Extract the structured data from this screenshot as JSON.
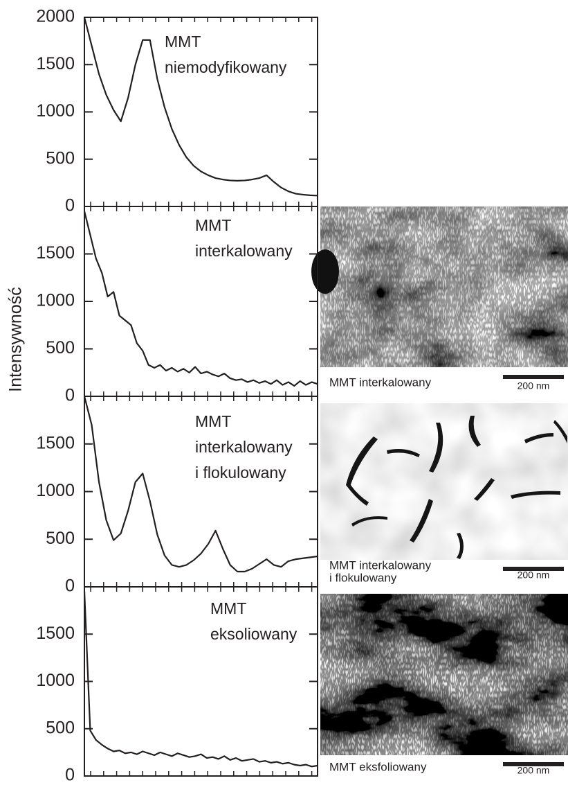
{
  "chart_data": [
    {
      "type": "line",
      "annotation": [
        "MMT",
        "niemodyfikowany"
      ],
      "color": "#231f20",
      "values": [
        2000,
        1700,
        1400,
        1180,
        1020,
        900,
        1150,
        1500,
        1760,
        1760,
        1350,
        1050,
        820,
        650,
        520,
        430,
        370,
        330,
        300,
        285,
        275,
        272,
        275,
        285,
        300,
        330,
        260,
        200,
        160,
        135,
        125,
        118,
        115
      ],
      "ylim": [
        0,
        2000
      ],
      "yticks": [
        0,
        500,
        1000,
        1500,
        2000
      ]
    },
    {
      "type": "line",
      "annotation": [
        "MMT",
        "interkalowany"
      ],
      "ylabel": "Intensywność",
      "color": "#231f20",
      "values": [
        1950,
        1700,
        1450,
        1300,
        1050,
        1100,
        850,
        800,
        750,
        560,
        480,
        330,
        300,
        330,
        270,
        300,
        260,
        290,
        250,
        310,
        240,
        260,
        230,
        210,
        240,
        190,
        170,
        180,
        150,
        170,
        140,
        160,
        130,
        170,
        120,
        150,
        110,
        160,
        120,
        150,
        130
      ],
      "ylim": [
        0,
        2000
      ],
      "yticks": [
        0,
        500,
        1000,
        1500
      ]
    },
    {
      "type": "line",
      "annotation": [
        "MMT",
        "interkalowany",
        "i flokulowany"
      ],
      "color": "#231f20",
      "values": [
        2000,
        1700,
        1100,
        700,
        490,
        560,
        800,
        1100,
        1190,
        900,
        550,
        330,
        230,
        210,
        230,
        280,
        350,
        450,
        590,
        400,
        230,
        160,
        160,
        190,
        240,
        290,
        230,
        210,
        270,
        290,
        300,
        310,
        320
      ],
      "ylim": [
        0,
        2000
      ],
      "yticks": [
        0,
        500,
        1000,
        1500
      ]
    },
    {
      "type": "line",
      "annotation": [
        "MMT",
        "eksoliowany"
      ],
      "color": "#231f20",
      "values": [
        1950,
        480,
        380,
        330,
        290,
        260,
        270,
        240,
        250,
        230,
        260,
        240,
        220,
        250,
        230,
        210,
        240,
        220,
        200,
        210,
        230,
        190,
        200,
        180,
        210,
        170,
        190,
        160,
        170,
        180,
        150,
        160,
        140,
        150,
        130,
        140,
        120,
        110,
        120,
        100,
        110
      ],
      "ylim": [
        0,
        2000
      ],
      "yticks": [
        0,
        500,
        1000,
        1500
      ]
    }
  ],
  "micrographs": [
    {
      "caption": [
        "MMT interkalowany"
      ],
      "scale_bar": "200 nm"
    },
    {
      "caption": [
        "MMT interkalowany",
        "i flokulowany"
      ],
      "scale_bar": "200 nm"
    },
    {
      "caption": [
        "MMT eksfoliowany"
      ],
      "scale_bar": "200 nm"
    }
  ]
}
